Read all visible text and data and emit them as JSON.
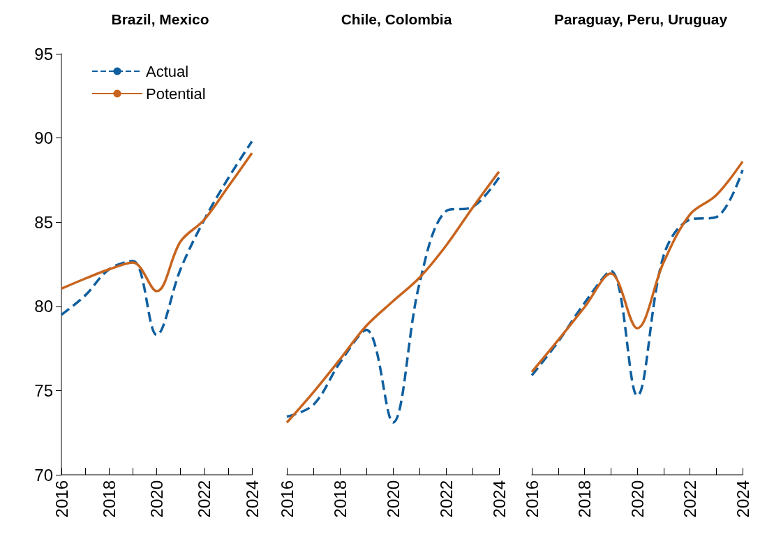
{
  "chart_data": [
    {
      "type": "line",
      "title": "Brazil, Mexico",
      "x": [
        2016,
        2017,
        2018,
        2019,
        2020,
        2021,
        2022,
        2023,
        2024
      ],
      "xlim": [
        2016,
        2024
      ],
      "xticks": [
        2016,
        {
          "value": 2017,
          "label": null
        },
        2018,
        {
          "value": 2019,
          "label": null
        },
        2020,
        {
          "value": 2021,
          "label": null
        },
        2022,
        {
          "value": 2023,
          "label": null
        },
        2024
      ],
      "ylim": [
        70,
        95
      ],
      "yticks": [
        70,
        75,
        80,
        85,
        90,
        95
      ],
      "grid": false,
      "legend": "top left",
      "marker": "none",
      "series": [
        {
          "name": "Actual",
          "color": "#0f5f9f",
          "line_style": "dashed",
          "values": [
            79.5,
            80.65,
            82.2,
            82.7,
            78.3,
            82.2,
            85.15,
            87.6,
            89.8
          ]
        },
        {
          "name": "Potential",
          "color": "#c8641e",
          "line_style": "solid",
          "values": [
            81.05,
            81.65,
            82.2,
            82.6,
            80.9,
            83.85,
            85.15,
            87.1,
            89.1
          ]
        }
      ]
    },
    {
      "type": "line",
      "title": "Chile, Colombia",
      "x": [
        2016,
        2017,
        2018,
        2019,
        2020,
        2021,
        2022,
        2023,
        2024
      ],
      "xlim": [
        2016,
        2024
      ],
      "xticks": [
        2016,
        {
          "value": 2017,
          "label": null
        },
        2018,
        {
          "value": 2019,
          "label": null
        },
        2020,
        {
          "value": 2021,
          "label": null
        },
        2022,
        {
          "value": 2023,
          "label": null
        },
        2024
      ],
      "ylim": [
        70,
        95
      ],
      "yticks": [
        70,
        75,
        80,
        85,
        90,
        95
      ],
      "grid": false,
      "legend": false,
      "tick_labels": "x",
      "marker": "none",
      "series": [
        {
          "color": "#0f5f9f",
          "line_style": "dashed",
          "values": [
            73.45,
            74.15,
            76.65,
            78.6,
            73.1,
            81.35,
            85.65,
            85.9,
            87.65
          ]
        },
        {
          "color": "#c8641e",
          "line_style": "solid",
          "values": [
            73.1,
            74.9,
            76.85,
            78.85,
            80.3,
            81.7,
            83.6,
            85.85,
            88.0
          ]
        }
      ]
    },
    {
      "type": "line",
      "title": "Paraguay, Peru, Uruguay",
      "x": [
        2016,
        2017,
        2018,
        2019,
        2020,
        2021,
        2022,
        2023,
        2024
      ],
      "xlim": [
        2016,
        2024
      ],
      "xticks": [
        2016,
        {
          "value": 2017,
          "label": null
        },
        2018,
        {
          "value": 2019,
          "label": null
        },
        2020,
        {
          "value": 2021,
          "label": null
        },
        2022,
        {
          "value": 2023,
          "label": null
        },
        2024
      ],
      "ylim": [
        70,
        95
      ],
      "yticks": [
        70,
        75,
        80,
        85,
        90,
        95
      ],
      "grid": false,
      "legend": false,
      "tick_labels": "x",
      "marker": "none",
      "series": [
        {
          "color": "#0f5f9f",
          "line_style": "dashed",
          "values": [
            75.9,
            77.9,
            80.2,
            82.1,
            74.7,
            83.0,
            85.15,
            85.3,
            88.1
          ]
        },
        {
          "color": "#c8641e",
          "line_style": "solid",
          "values": [
            76.1,
            78.0,
            79.95,
            81.95,
            78.7,
            82.6,
            85.45,
            86.6,
            88.6
          ]
        }
      ]
    }
  ]
}
